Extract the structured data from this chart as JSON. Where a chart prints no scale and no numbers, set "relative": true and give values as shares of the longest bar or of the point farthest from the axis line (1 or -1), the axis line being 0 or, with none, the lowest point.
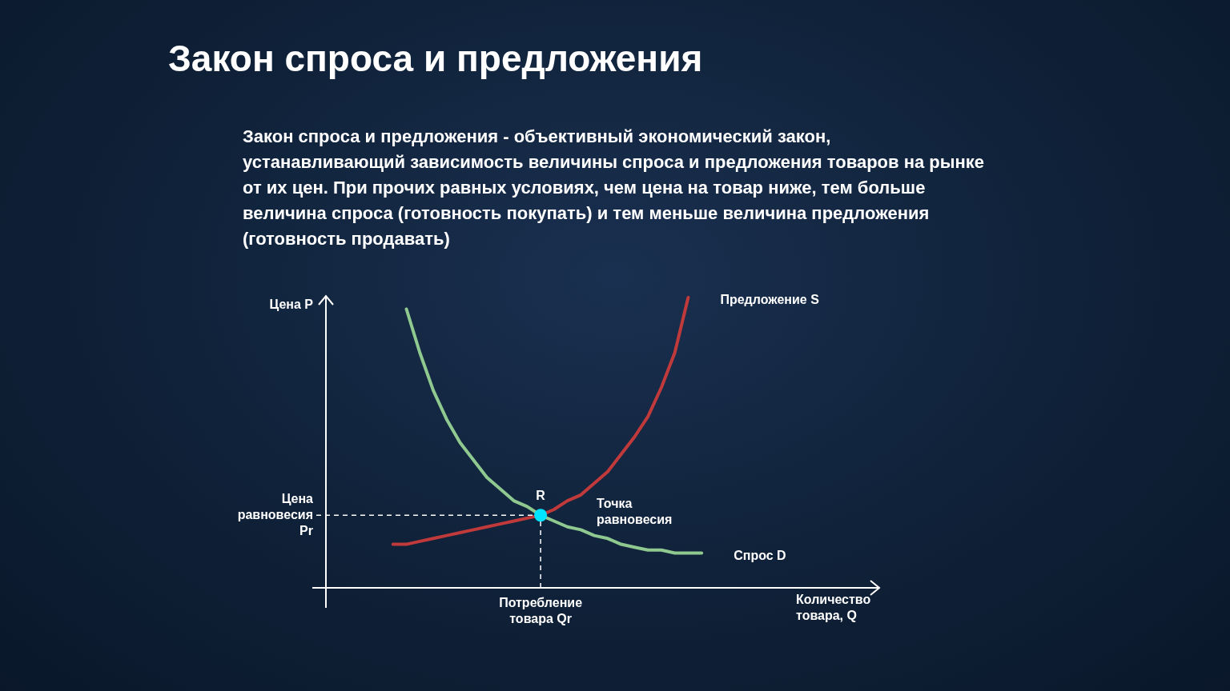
{
  "chart_data": {
    "type": "line",
    "title": "Закон спроса и предложения",
    "subtitle": "Закон спроса и предложения - объективный экономический закон, устанавливающий зависимость величины спроса и предложения товаров на рынке от их цен. При прочих равных условиях, чем цена на товар ниже, тем больше величина спроса (готовность покупать) и тем меньше величина предложения (готовность продавать)",
    "xlabel": "Количество товара, Q",
    "ylabel": "Цена P",
    "relative": true,
    "legend": false,
    "categories": [
      null,
      null,
      null,
      null,
      null,
      null,
      null,
      null,
      null,
      null,
      null,
      null,
      null,
      null,
      null,
      null,
      null,
      null,
      null,
      null,
      null,
      null,
      null,
      null,
      null,
      null,
      null,
      null,
      null,
      null,
      null,
      null,
      null,
      null,
      null,
      null,
      null,
      null,
      null,
      null,
      null,
      null
    ],
    "series": [
      {
        "name": "Предложение S",
        "color": "#c0393b",
        "values": [
          null,
          null,
          null,
          null,
          null,
          0.15,
          0.15,
          0.16,
          0.17,
          0.18,
          0.19,
          0.2,
          0.21,
          0.22,
          0.23,
          0.24,
          0.25,
          0.27,
          0.3,
          0.32,
          0.36,
          0.4,
          0.46,
          0.52,
          0.59,
          0.69,
          0.81,
          1.0,
          null,
          null,
          null,
          null,
          null,
          null,
          null,
          null,
          null,
          null,
          null,
          null,
          null,
          null
        ]
      },
      {
        "name": "Спрос D",
        "color": "#8fc98f",
        "values": [
          null,
          null,
          null,
          null,
          null,
          null,
          0.96,
          0.81,
          0.68,
          0.58,
          0.5,
          0.44,
          0.38,
          0.34,
          0.3,
          0.28,
          0.25,
          0.23,
          0.21,
          0.2,
          0.18,
          0.17,
          0.15,
          0.14,
          0.13,
          0.13,
          0.12,
          0.12,
          0.12,
          null,
          null,
          null,
          null,
          null,
          null,
          null,
          null,
          null,
          null,
          null,
          null,
          null
        ]
      }
    ],
    "ref_lines": [
      {
        "axis": "y",
        "value": 0.25,
        "label": "Цена равновесия Pr"
      }
    ],
    "annotations": [
      {
        "text": "R",
        "y": 0.25
      },
      "Точка равновесия",
      "Потребление товара Qr"
    ]
  }
}
